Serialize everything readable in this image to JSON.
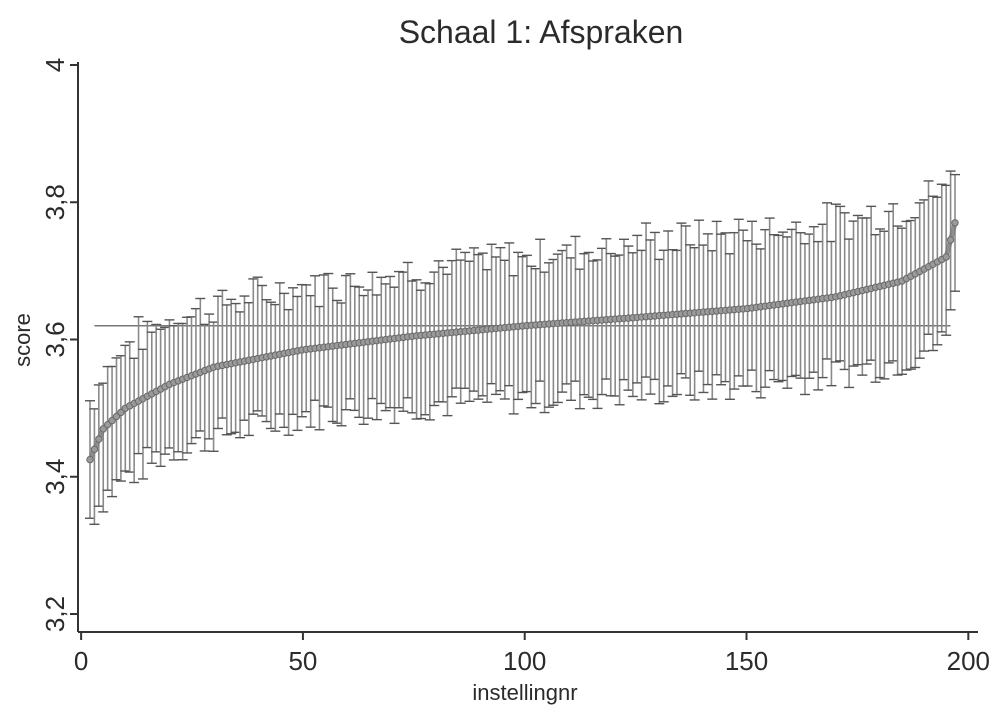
{
  "chart_data": {
    "type": "scatter",
    "title": "Schaal 1: Afspraken",
    "xlabel": "instellingnr",
    "ylabel": "score",
    "xlim": [
      0,
      200
    ],
    "ylim": [
      3.2,
      4.0
    ],
    "x_ticks": [
      "0",
      "50",
      "100",
      "150",
      "200"
    ],
    "y_ticks": [
      "3,2",
      "3,4",
      "3,6",
      "3,8",
      "4"
    ],
    "grid": false,
    "reference_line": 3.62,
    "n_points": 197,
    "series": [
      {
        "values_at": {
          "x": [
            2,
            5,
            10,
            20,
            30,
            50,
            75,
            100,
            125,
            150,
            170,
            185,
            195,
            197
          ],
          "mean": [
            3.425,
            3.47,
            3.5,
            3.535,
            3.56,
            3.585,
            3.605,
            3.62,
            3.632,
            3.645,
            3.662,
            3.685,
            3.72,
            3.77
          ],
          "lower": [
            3.34,
            3.37,
            3.4,
            3.44,
            3.46,
            3.49,
            3.505,
            3.515,
            3.525,
            3.535,
            3.55,
            3.57,
            3.6,
            3.69
          ],
          "upper": [
            3.51,
            3.55,
            3.59,
            3.63,
            3.65,
            3.675,
            3.7,
            3.72,
            3.74,
            3.755,
            3.77,
            3.79,
            3.82,
            3.86
          ]
        }
      }
    ],
    "colors": {
      "mean": "#7a7a7a",
      "errorbar": "#8a8a8a",
      "axis": "#333333"
    }
  }
}
